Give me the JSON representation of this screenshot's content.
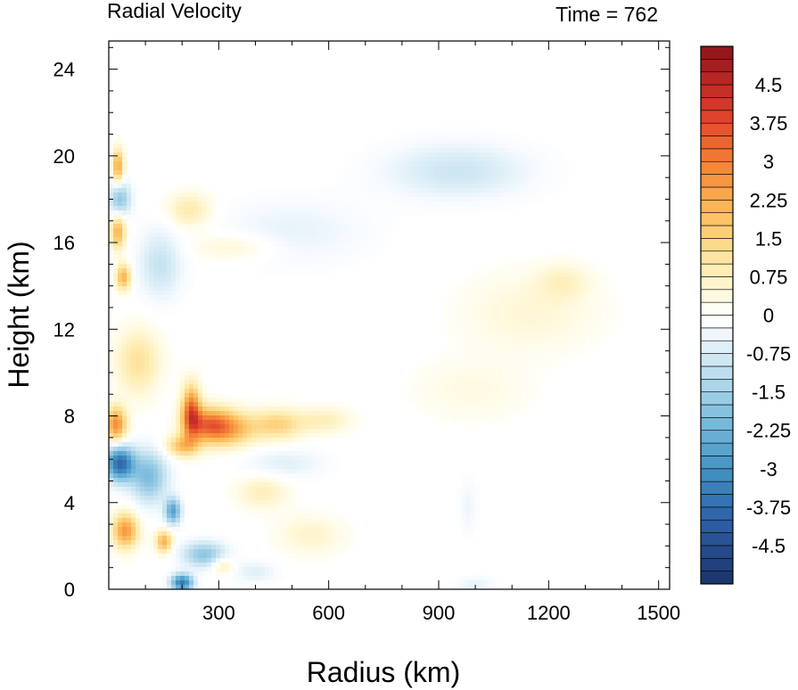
{
  "chart_data": {
    "type": "heatmap",
    "title_left": "Radial Velocity",
    "title_right": "Time = 762",
    "xlabel": "Radius (km)",
    "ylabel": "Height (km)",
    "xlim": [
      0,
      1530
    ],
    "ylim": [
      0,
      25.3
    ],
    "xticks": [
      300,
      600,
      900,
      1200,
      1500
    ],
    "xtick_labels": [
      "300",
      "600",
      "900",
      "1200",
      "1500"
    ],
    "yticks": [
      0,
      4,
      8,
      12,
      16,
      20,
      24
    ],
    "ytick_labels": [
      "0",
      "4",
      "8",
      "12",
      "16",
      "20",
      "24"
    ],
    "colorbar": {
      "min": -5.25,
      "max": 5.25,
      "step": 0.25,
      "tick_values": [
        4.5,
        3.75,
        3,
        2.25,
        1.5,
        0.75,
        0,
        -0.75,
        -1.5,
        -2.25,
        -3,
        -3.75,
        -4.5
      ],
      "tick_labels": [
        "4.5",
        "3.75",
        "3",
        "2.25",
        "1.5",
        "0.75",
        "0",
        "-0.75",
        "-1.5",
        "-2.25",
        "-3",
        "-3.75",
        "-4.5"
      ]
    },
    "features": [
      {
        "r": 20,
        "z": 7.6,
        "v": 2.8,
        "sr": 28,
        "sz": 0.8
      },
      {
        "r": 30,
        "z": 5.8,
        "v": -3.8,
        "sr": 40,
        "sz": 0.8
      },
      {
        "r": 110,
        "z": 5.2,
        "v": -2.0,
        "sr": 50,
        "sz": 1.2
      },
      {
        "r": 45,
        "z": 2.7,
        "v": 2.6,
        "sr": 35,
        "sz": 0.8
      },
      {
        "r": 175,
        "z": 3.6,
        "v": -2.6,
        "sr": 22,
        "sz": 0.6
      },
      {
        "r": 150,
        "z": 2.2,
        "v": 2.2,
        "sr": 22,
        "sz": 0.5
      },
      {
        "r": 225,
        "z": 8.2,
        "v": 3.2,
        "sr": 25,
        "sz": 1.2
      },
      {
        "r": 270,
        "z": 7.6,
        "v": 2.6,
        "sr": 60,
        "sz": 0.8
      },
      {
        "r": 330,
        "z": 7.4,
        "v": 2.0,
        "sr": 70,
        "sz": 0.8
      },
      {
        "r": 460,
        "z": 7.6,
        "v": 1.5,
        "sr": 70,
        "sz": 0.7
      },
      {
        "r": 590,
        "z": 7.8,
        "v": 0.8,
        "sr": 70,
        "sz": 0.6
      },
      {
        "r": 200,
        "z": 6.6,
        "v": 1.8,
        "sr": 45,
        "sz": 0.5
      },
      {
        "r": 260,
        "z": 1.6,
        "v": -1.8,
        "sr": 60,
        "sz": 0.6
      },
      {
        "r": 200,
        "z": 0.3,
        "v": -3.5,
        "sr": 30,
        "sz": 0.4
      },
      {
        "r": 25,
        "z": 16.5,
        "v": 2.2,
        "sr": 20,
        "sz": 0.8
      },
      {
        "r": 25,
        "z": 19.5,
        "v": 2.4,
        "sr": 15,
        "sz": 0.8
      },
      {
        "r": 30,
        "z": 18.0,
        "v": -1.8,
        "sr": 30,
        "sz": 0.8
      },
      {
        "r": 40,
        "z": 14.4,
        "v": 2.2,
        "sr": 20,
        "sz": 0.6
      },
      {
        "r": 80,
        "z": 10.5,
        "v": 1.2,
        "sr": 60,
        "sz": 1.5
      },
      {
        "r": 140,
        "z": 15.0,
        "v": -1.0,
        "sr": 60,
        "sz": 1.6
      },
      {
        "r": 220,
        "z": 17.5,
        "v": 1.0,
        "sr": 60,
        "sz": 0.8
      },
      {
        "r": 340,
        "z": 15.8,
        "v": 0.6,
        "sr": 120,
        "sz": 0.6
      },
      {
        "r": 950,
        "z": 19.3,
        "v": -0.9,
        "sr": 200,
        "sz": 1.3
      },
      {
        "r": 500,
        "z": 16.5,
        "v": -0.5,
        "sr": 200,
        "sz": 1.5
      },
      {
        "r": 1150,
        "z": 12.8,
        "v": 0.5,
        "sr": 180,
        "sz": 1.8
      },
      {
        "r": 1240,
        "z": 14.2,
        "v": 0.6,
        "sr": 70,
        "sz": 0.8
      },
      {
        "r": 990,
        "z": 9.2,
        "v": 0.35,
        "sr": 150,
        "sz": 1.4
      },
      {
        "r": 550,
        "z": 2.5,
        "v": 0.6,
        "sr": 90,
        "sz": 0.9
      },
      {
        "r": 420,
        "z": 4.5,
        "v": 0.8,
        "sr": 70,
        "sz": 0.8
      },
      {
        "r": 480,
        "z": 5.8,
        "v": -0.6,
        "sr": 110,
        "sz": 0.7
      },
      {
        "r": 400,
        "z": 0.8,
        "v": -0.6,
        "sr": 60,
        "sz": 0.5
      },
      {
        "r": 310,
        "z": 1.1,
        "v": 1.0,
        "sr": 30,
        "sz": 0.4
      },
      {
        "r": 1000,
        "z": 0.2,
        "v": -0.5,
        "sr": 50,
        "sz": 0.4
      },
      {
        "r": 980,
        "z": 3.8,
        "v": -0.4,
        "sr": 25,
        "sz": 1.3
      }
    ]
  }
}
